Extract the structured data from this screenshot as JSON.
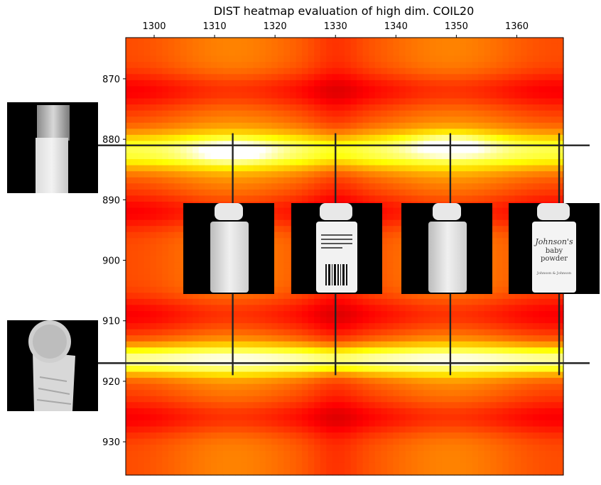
{
  "chart_data": {
    "type": "heatmap",
    "title": "DIST heatmap evaluation of high dim. COIL20",
    "xlabel": "",
    "ylabel": "",
    "colormap": "hot",
    "x_axis_position": "top",
    "xlim": [
      1295.3,
      1367.7
    ],
    "ylim": [
      935.5,
      863.2
    ],
    "xticks": [
      1300,
      1310,
      1320,
      1330,
      1340,
      1350,
      1360
    ],
    "yticks": [
      870,
      880,
      890,
      900,
      910,
      920,
      930
    ],
    "grid": false,
    "heat_bands_y": [
      {
        "y": 882,
        "level": "high"
      },
      {
        "y": 916.5,
        "level": "high"
      }
    ],
    "heat_peaks": [
      {
        "x": 1313,
        "y": 882
      },
      {
        "x": 1349,
        "y": 881
      }
    ],
    "low_bands_y": [
      872,
      892,
      909,
      926
    ],
    "guide_lines": {
      "vertical_x": [
        1313,
        1330,
        1349,
        1367
      ],
      "vertical_y_range": [
        879,
        919
      ],
      "horizontal_y": [
        881,
        917
      ]
    },
    "image_annotations": [
      {
        "name": "wooden-block-top-image",
        "kind": "COIL20 object",
        "anchor": "horizontal line y=881"
      },
      {
        "name": "wooden-block-bottom-image",
        "kind": "COIL20 object",
        "anchor": "horizontal line y=917"
      },
      {
        "name": "baby-powder-side-1-image",
        "kind": "COIL20 object",
        "anchor": "vertical line x=1313"
      },
      {
        "name": "baby-powder-back-image",
        "kind": "COIL20 object",
        "anchor": "vertical line x=1330"
      },
      {
        "name": "baby-powder-side-2-image",
        "kind": "COIL20 object",
        "anchor": "vertical line x=1349"
      },
      {
        "name": "baby-powder-front-image",
        "kind": "COIL20 object",
        "anchor": "vertical line x=1367"
      }
    ]
  },
  "labels": {
    "logo_line1": "Johnson's",
    "logo_line2": "baby",
    "logo_line3": "powder",
    "logo_line4": "Johnson & Johnson"
  }
}
